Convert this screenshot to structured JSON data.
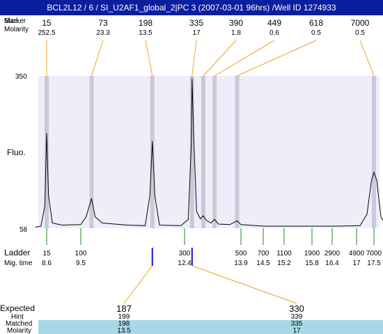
{
  "header": {
    "title": "BCL2L12 / 6 / SI_U2AF1_global_2|PC 3 (2007-03-01 96hrs) /Well ID 1274933"
  },
  "labels": {
    "peak_size": "Size",
    "peak_marker": "Marker",
    "peak_molarity": "Molarity",
    "fluo": "Fluo.",
    "ladder": "Ladder",
    "mig_time": "Mig. time",
    "expected": "Expected",
    "hint": "Hint",
    "matched": "Matched",
    "molarity": "Molarity"
  },
  "colors": {
    "plot_bg": "#eeeefb",
    "ladder_band": "#c9c9d9",
    "leader_orange": "#f0a020",
    "tick_green": "#1a8a1a",
    "marker_blue": "#1010ee",
    "expected_red": "#e82020",
    "table_blue": "#a8d8e8",
    "title_blue": "#0a1f9e"
  },
  "chart_data": {
    "type": "line",
    "y_axis": {
      "label": "Fluo.",
      "ticks": [
        "350",
        "58"
      ],
      "range": [
        58,
        350
      ]
    },
    "peaks": [
      {
        "size": "15",
        "molarity": "252.5",
        "time": 8.6
      },
      {
        "size": "73",
        "molarity": "23.3",
        "time": 9.8
      },
      {
        "size": "198",
        "molarity": "13.5",
        "time": 11.5
      },
      {
        "size": "335",
        "molarity": "17",
        "time": 12.6
      },
      {
        "size": "390",
        "molarity": "1.8",
        "time": 12.9
      },
      {
        "size": "449",
        "molarity": "0.6",
        "time": 13.2
      },
      {
        "size": "618",
        "molarity": "0.5",
        "time": 13.8
      },
      {
        "size": "7000",
        "molarity": "0.5",
        "time": 17.5
      }
    ],
    "ladder": [
      {
        "size": "15",
        "time": "8.6"
      },
      {
        "size": "100",
        "time": "9.5"
      },
      {
        "size": "300",
        "time": "12.4"
      },
      {
        "size": "500",
        "time": "13.9"
      },
      {
        "size": "700",
        "time": "14.5"
      },
      {
        "size": "1100",
        "time": "15.2"
      },
      {
        "size": "1900",
        "time": "15.8"
      },
      {
        "size": "2900",
        "time": "16.4"
      },
      {
        "size": "4900",
        "time": "17"
      },
      {
        "size": "7000",
        "time": "17.5"
      }
    ],
    "trace": [
      [
        8.3,
        60
      ],
      [
        8.45,
        62
      ],
      [
        8.55,
        100
      ],
      [
        8.6,
        240
      ],
      [
        8.65,
        120
      ],
      [
        8.75,
        68
      ],
      [
        9.0,
        64
      ],
      [
        9.5,
        65
      ],
      [
        9.65,
        80
      ],
      [
        9.8,
        115
      ],
      [
        9.9,
        80
      ],
      [
        10.1,
        68
      ],
      [
        10.8,
        64
      ],
      [
        11.3,
        63
      ],
      [
        11.43,
        120
      ],
      [
        11.5,
        225
      ],
      [
        11.57,
        120
      ],
      [
        11.7,
        64
      ],
      [
        12.3,
        63
      ],
      [
        12.5,
        75
      ],
      [
        12.58,
        220
      ],
      [
        12.6,
        345
      ],
      [
        12.65,
        220
      ],
      [
        12.72,
        90
      ],
      [
        12.82,
        76
      ],
      [
        12.9,
        82
      ],
      [
        12.97,
        74
      ],
      [
        13.1,
        68
      ],
      [
        13.2,
        75
      ],
      [
        13.3,
        66
      ],
      [
        13.6,
        65
      ],
      [
        13.8,
        72
      ],
      [
        13.9,
        65
      ],
      [
        14.5,
        62
      ],
      [
        15.5,
        62
      ],
      [
        16.5,
        62
      ],
      [
        17.1,
        63
      ],
      [
        17.3,
        85
      ],
      [
        17.43,
        150
      ],
      [
        17.5,
        165
      ],
      [
        17.58,
        150
      ],
      [
        17.7,
        80
      ],
      [
        17.85,
        62
      ]
    ],
    "expected": [
      {
        "expected": "187",
        "hint": "199",
        "matched": "198",
        "molarity": "13.5"
      },
      {
        "expected": "330",
        "hint": "339",
        "matched": "335",
        "molarity": "17"
      }
    ]
  }
}
